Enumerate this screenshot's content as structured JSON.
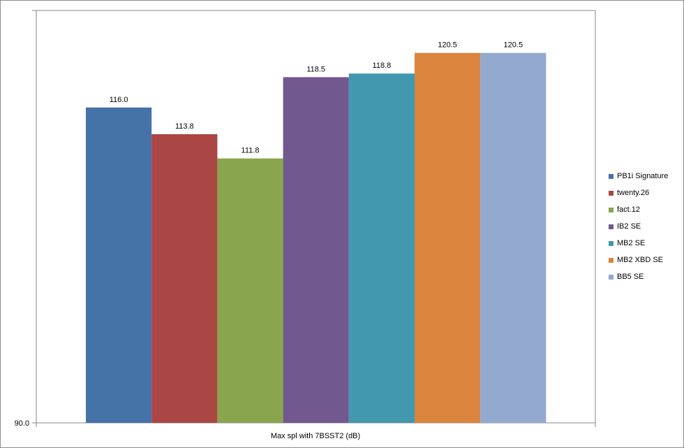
{
  "chart_data": {
    "type": "bar",
    "title": "",
    "xlabel": "Max spl with 7BSST2 (dB)",
    "ylabel": "",
    "ylim": [
      90.0,
      124.0
    ],
    "y_tick_labels": [
      "90.0"
    ],
    "grid": false,
    "legend_position": "right",
    "series": [
      {
        "name": "PB1i Signature",
        "value": 116.0,
        "label": "116.0",
        "color": "#4572a7"
      },
      {
        "name": "twenty.26",
        "value": 113.8,
        "label": "113.8",
        "color": "#aa4643"
      },
      {
        "name": "fact.12",
        "value": 111.8,
        "label": "111.8",
        "color": "#89a54e"
      },
      {
        "name": "IB2 SE",
        "value": 118.5,
        "label": "118.5",
        "color": "#71588f"
      },
      {
        "name": "MB2 SE",
        "value": 118.8,
        "label": "118.8",
        "color": "#4198af"
      },
      {
        "name": "MB2 XBD SE",
        "value": 120.5,
        "label": "120.5",
        "color": "#db843d"
      },
      {
        "name": "BB5 SE",
        "value": 120.5,
        "label": "120.5",
        "color": "#93a9cf"
      }
    ]
  }
}
